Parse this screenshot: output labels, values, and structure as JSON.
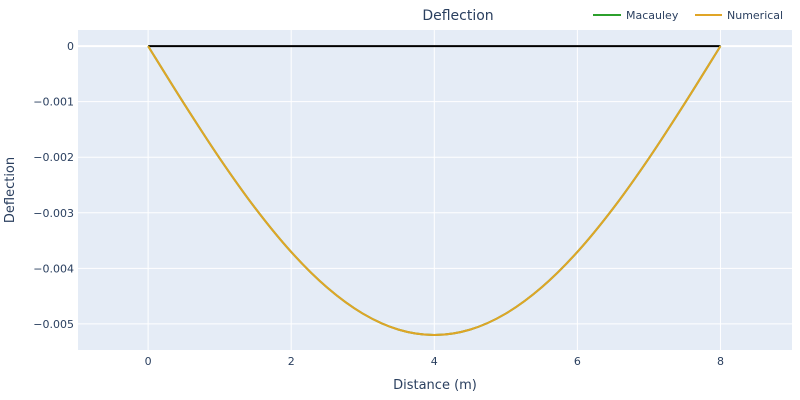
{
  "chart_data": {
    "type": "line",
    "title": "Deflection",
    "xlabel": "Distance (m)",
    "ylabel": "Deflection",
    "xlim": [
      -0.98,
      9.0
    ],
    "ylim": [
      -0.00547,
      0.00029
    ],
    "grid": true,
    "legend_position": "top-right",
    "x_ticks": [
      0,
      2,
      4,
      6,
      8
    ],
    "x_tick_labels": [
      "0",
      "2",
      "4",
      "6",
      "8"
    ],
    "y_ticks": [
      0,
      -0.001,
      -0.002,
      -0.003,
      -0.004,
      -0.005
    ],
    "y_tick_labels": [
      "0",
      "−0.001",
      "−0.002",
      "−0.003",
      "−0.004",
      "−0.005"
    ],
    "x": [
      0,
      0.5,
      1,
      1.5,
      2,
      2.5,
      3,
      3.5,
      4,
      4.5,
      5,
      5.5,
      6,
      6.5,
      7,
      7.5,
      8
    ],
    "series": [
      {
        "name": "Macauley",
        "color": "#2ca02c",
        "in_legend": true,
        "values": [
          0,
          -0.001032,
          -0.002019,
          -0.002921,
          -0.003705,
          -0.004343,
          -0.004814,
          -0.005103,
          -0.0052,
          -0.005103,
          -0.004814,
          -0.004343,
          -0.003705,
          -0.002921,
          -0.002019,
          -0.001032,
          0
        ]
      },
      {
        "name": "Numerical",
        "color": "#e0a526",
        "in_legend": true,
        "values": [
          0,
          -0.001032,
          -0.002019,
          -0.002921,
          -0.003705,
          -0.004343,
          -0.004814,
          -0.005103,
          -0.0052,
          -0.005103,
          -0.004814,
          -0.004343,
          -0.003705,
          -0.002921,
          -0.002019,
          -0.001032,
          0
        ]
      },
      {
        "name": "Beam",
        "color": "#000000",
        "in_legend": false,
        "x": [
          0,
          8
        ],
        "values": [
          0,
          0
        ]
      }
    ]
  },
  "colors": {
    "plot_bg": "#e5ecf6",
    "grid": "#ffffff",
    "text": "#2a3f5f"
  }
}
